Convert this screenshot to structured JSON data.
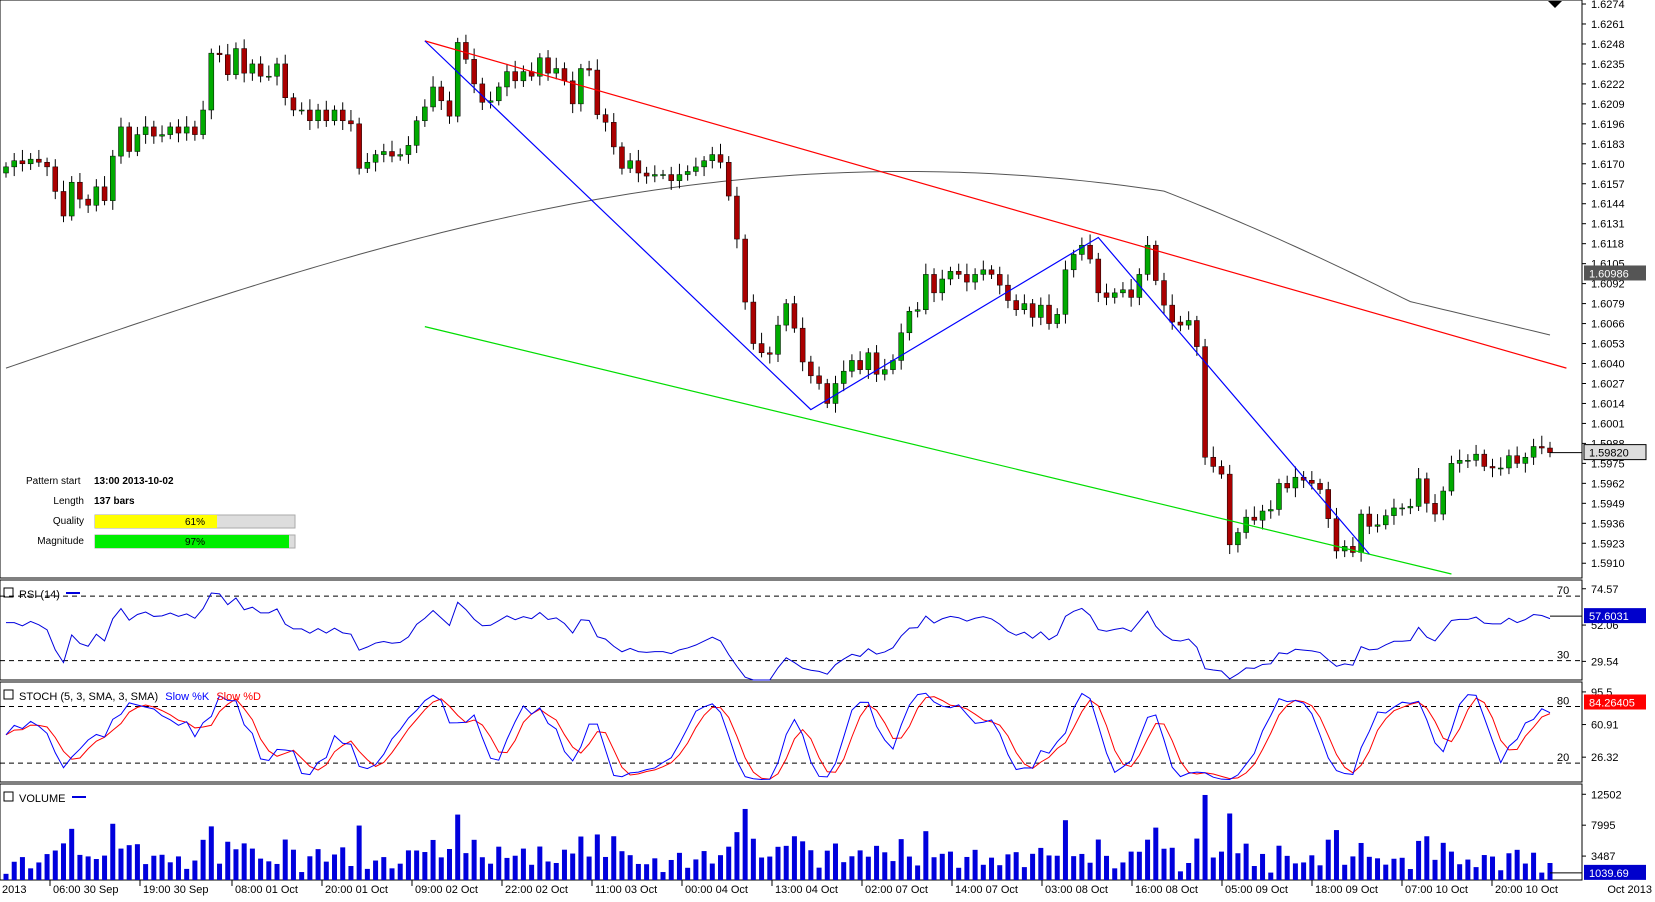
{
  "chart_data": {
    "type": "candlestick-with-indicators",
    "symbol_info": {
      "pattern_start_label": "Pattern start",
      "pattern_start_value": "13:00 2013-10-02",
      "length_label": "Length",
      "length_value": "137 bars",
      "quality_label": "Quality",
      "quality_value": "61%",
      "quality_fraction": 0.61,
      "magnitude_label": "Magnitude",
      "magnitude_value": "97%",
      "magnitude_fraction": 0.97
    },
    "time_labels": [
      "2013",
      "06:00 30 Sep",
      "19:00 30 Sep",
      "08:00 01 Oct",
      "20:00 01 Oct",
      "09:00 02 Oct",
      "22:00 02 Oct",
      "11:00 03 Oct",
      "00:00 04 Oct",
      "13:00 04 Oct",
      "02:00 07 Oct",
      "14:00 07 Oct",
      "03:00 08 Oct",
      "16:00 08 Oct",
      "05:00 09 Oct",
      "18:00 09 Oct",
      "07:00 10 Oct",
      "20:00 10 Oct",
      "Oct 2013"
    ],
    "price_panel": {
      "y_min": 1.5903,
      "y_max": 1.6274,
      "ticks": [
        "1.6274",
        "1.6261",
        "1.6248",
        "1.6235",
        "1.6222",
        "1.6209",
        "1.6196",
        "1.6183",
        "1.6170",
        "1.6157",
        "1.6144",
        "1.6131",
        "1.6118",
        "1.6105",
        "1.6092",
        "1.6079",
        "1.6066",
        "1.6053",
        "1.6040",
        "1.6027",
        "1.6014",
        "1.6001",
        "1.5988",
        "1.5975",
        "1.5962",
        "1.5949",
        "1.5936",
        "1.5923",
        "1.5910"
      ],
      "ma_value_label": "1.60986",
      "ma_value": 1.60986,
      "last_price_label": "1.59820",
      "last_price": 1.5982,
      "closes": [
        1.6168,
        1.6172,
        1.617,
        1.6173,
        1.6171,
        1.6168,
        1.6152,
        1.6136,
        1.6158,
        1.6147,
        1.6143,
        1.6155,
        1.6146,
        1.6175,
        1.6194,
        1.6178,
        1.6189,
        1.6194,
        1.6188,
        1.6189,
        1.6194,
        1.619,
        1.6194,
        1.6189,
        1.6205,
        1.6242,
        1.6241,
        1.6228,
        1.6245,
        1.6229,
        1.6235,
        1.6227,
        1.6227,
        1.6235,
        1.6213,
        1.6205,
        1.6205,
        1.6198,
        1.6205,
        1.6198,
        1.6205,
        1.6198,
        1.6196,
        1.6167,
        1.6171,
        1.6176,
        1.6178,
        1.6175,
        1.6176,
        1.6182,
        1.6198,
        1.6207,
        1.622,
        1.6211,
        1.6201,
        1.6249,
        1.6238,
        1.6222,
        1.621,
        1.6211,
        1.622,
        1.623,
        1.6224,
        1.623,
        1.6227,
        1.6239,
        1.6229,
        1.6232,
        1.6224,
        1.6209,
        1.6232,
        1.6231,
        1.6202,
        1.6197,
        1.6181,
        1.6167,
        1.6172,
        1.6164,
        1.6162,
        1.6163,
        1.6163,
        1.6159,
        1.6163,
        1.6165,
        1.6168,
        1.6172,
        1.6176,
        1.6171,
        1.6149,
        1.6121,
        1.608,
        1.6053,
        1.6047,
        1.6046,
        1.6065,
        1.6079,
        1.6063,
        1.6041,
        1.6032,
        1.6027,
        1.6014,
        1.6027,
        1.6035,
        1.6042,
        1.6036,
        1.6047,
        1.6033,
        1.6036,
        1.6042,
        1.606,
        1.6074,
        1.6075,
        1.6098,
        1.6086,
        1.6095,
        1.61,
        1.6098,
        1.6093,
        1.6098,
        1.6101,
        1.6098,
        1.6091,
        1.6081,
        1.6075,
        1.6079,
        1.607,
        1.6078,
        1.6066,
        1.6072,
        1.6101,
        1.6111,
        1.6117,
        1.6108,
        1.6086,
        1.6083,
        1.6086,
        1.6088,
        1.6083,
        1.6098,
        1.6117,
        1.6094,
        1.6078,
        1.6067,
        1.6065,
        1.6068,
        1.6051,
        1.5979,
        1.5973,
        1.5968,
        1.5922,
        1.593,
        1.594,
        1.5938,
        1.5944,
        1.5945,
        1.5962,
        1.5959,
        1.5966,
        1.5964,
        1.5962,
        1.5958,
        1.5939,
        1.5918,
        1.5921,
        1.5917,
        1.5942,
        1.5934,
        1.5935,
        1.5941,
        1.5946,
        1.5946,
        1.5947,
        1.5965,
        1.5949,
        1.5942,
        1.5957,
        1.5975,
        1.5977,
        1.5977,
        1.5981,
        1.5973,
        1.5972,
        1.5972,
        1.598,
        1.5975,
        1.5979,
        1.5986,
        1.5985,
        1.5982
      ]
    },
    "rsi_panel": {
      "title": "RSI (14)",
      "y_min": 18,
      "y_max": 80,
      "ticks": [
        "74.57",
        "52.06",
        "29.54"
      ],
      "level_labels": [
        "70",
        "30"
      ],
      "last_value_label": "57.6031",
      "last_value": 57.6031
    },
    "stoch_panel": {
      "title_prefix": "STOCH (5, 3, SMA, 3, SMA)",
      "k_label": "Slow %K",
      "d_label": "Slow %D",
      "y_min": 0,
      "y_max": 106,
      "ticks": [
        "95.5",
        "60.91",
        "26.32"
      ],
      "level_labels": [
        "80",
        "20"
      ],
      "last_value_label": "84.26405",
      "last_value": 84.26405
    },
    "volume_panel": {
      "title": "VOLUME",
      "y_min": 0,
      "y_max": 14000,
      "ticks": [
        "12502",
        "7995",
        "3487"
      ],
      "last_value_label": "1039.69",
      "last_value": 1039.69
    },
    "trendlines": [
      {
        "name": "resistance",
        "color": "#ff0000",
        "from": {
          "bar": 51,
          "price": 1.625
        },
        "to": {
          "bar": 190,
          "price": 1.6037
        }
      },
      {
        "name": "support",
        "color": "#00dd00",
        "from": {
          "bar": 51,
          "price": 1.6064
        },
        "to": {
          "bar": 176,
          "price": 1.5903
        }
      }
    ],
    "pattern_points": [
      {
        "bar": 51,
        "price": 1.625
      },
      {
        "bar": 98,
        "price": 1.601
      },
      {
        "bar": 133,
        "price": 1.6122
      },
      {
        "bar": 166,
        "price": 1.5916
      }
    ],
    "colors": {
      "bull": "#00aa00",
      "bear": "#aa0000",
      "ma": "#555555",
      "rsi": "#0000dd",
      "stoch_k": "#0000ff",
      "stoch_d": "#ff0000",
      "volume": "#0000dd",
      "quality_bar": "#ffff00",
      "magnitude_bar": "#00ee00",
      "pattern_line": "#0000ff"
    }
  }
}
